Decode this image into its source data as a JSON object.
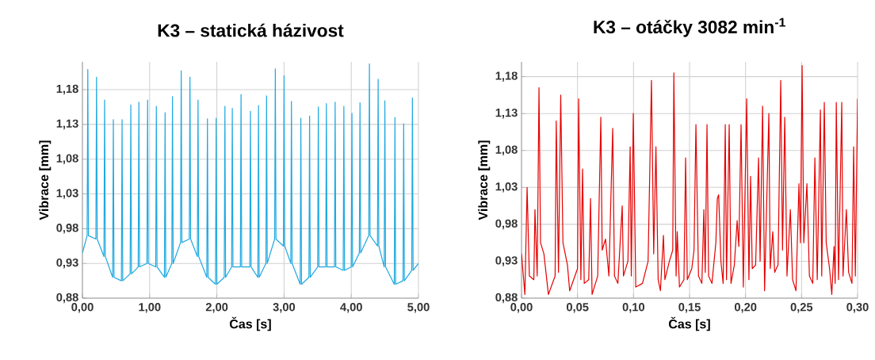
{
  "chart_data": [
    {
      "type": "line",
      "title": "K3 – statická házivost",
      "xlabel": "Čas [s]",
      "ylabel": "Vibrace [mm]",
      "grid": true,
      "xlim": [
        0,
        5
      ],
      "ylim": [
        0.88,
        1.22
      ],
      "xticks": [
        {
          "value": 0,
          "label": "0,00"
        },
        {
          "value": 1,
          "label": "1,00"
        },
        {
          "value": 2,
          "label": "2,00"
        },
        {
          "value": 3,
          "label": "3,00"
        },
        {
          "value": 4,
          "label": "4,00"
        },
        {
          "value": 5,
          "label": "5,00"
        }
      ],
      "yticks": [
        {
          "value": 0.88,
          "label": "0,88"
        },
        {
          "value": 0.93,
          "label": "0,93"
        },
        {
          "value": 0.98,
          "label": "0,98"
        },
        {
          "value": 1.03,
          "label": "1,03"
        },
        {
          "value": 1.08,
          "label": "1,08"
        },
        {
          "value": 1.13,
          "label": "1,13"
        },
        {
          "value": 1.18,
          "label": "1,18"
        }
      ],
      "x": [
        0,
        0.07,
        0.08,
        0.09,
        0.2,
        0.21,
        0.22,
        0.32,
        0.33,
        0.34,
        0.45,
        0.46,
        0.47,
        0.58,
        0.59,
        0.6,
        0.71,
        0.72,
        0.73,
        0.83,
        0.84,
        0.85,
        0.96,
        0.97,
        0.98,
        1.09,
        1.1,
        1.11,
        1.22,
        1.23,
        1.24,
        1.33,
        1.34,
        1.35,
        1.46,
        1.47,
        1.48,
        1.59,
        1.6,
        1.61,
        1.71,
        1.72,
        1.73,
        1.85,
        1.86,
        1.87,
        1.98,
        1.99,
        2.0,
        2.11,
        2.12,
        2.13,
        2.22,
        2.23,
        2.24,
        2.35,
        2.36,
        2.37,
        2.49,
        2.5,
        2.51,
        2.61,
        2.62,
        2.63,
        2.73,
        2.74,
        2.75,
        2.86,
        2.87,
        2.88,
        2.99,
        3.0,
        3.01,
        3.1,
        3.11,
        3.12,
        3.24,
        3.25,
        3.26,
        3.37,
        3.38,
        3.39,
        3.5,
        3.51,
        3.52,
        3.62,
        3.63,
        3.64,
        3.75,
        3.76,
        3.77,
        3.88,
        3.89,
        3.9,
        4.0,
        4.01,
        4.02,
        4.12,
        4.13,
        4.14,
        4.26,
        4.27,
        4.28,
        4.39,
        4.4,
        4.41,
        4.49,
        4.5,
        4.51,
        4.64,
        4.65,
        4.66,
        4.77,
        4.78,
        4.79,
        4.9,
        4.91,
        4.92,
        5
      ],
      "series": [
        {
          "color": "#1ea9e1",
          "values": [
            0.945,
            0.97,
            1.209,
            0.97,
            0.965,
            1.198,
            0.965,
            0.94,
            1.165,
            0.94,
            0.91,
            1.137,
            0.91,
            0.905,
            1.137,
            0.905,
            0.915,
            1.158,
            0.915,
            0.925,
            1.162,
            0.925,
            0.93,
            1.165,
            0.93,
            0.925,
            1.156,
            0.925,
            0.91,
            1.147,
            0.91,
            0.93,
            1.17,
            0.93,
            0.96,
            1.207,
            0.96,
            0.965,
            1.198,
            0.965,
            0.94,
            1.165,
            0.94,
            0.91,
            1.138,
            0.91,
            0.9,
            1.139,
            0.9,
            0.91,
            1.156,
            0.91,
            0.925,
            1.153,
            0.925,
            0.925,
            1.173,
            0.925,
            0.925,
            1.149,
            0.925,
            0.91,
            1.157,
            0.91,
            0.93,
            1.171,
            0.93,
            0.965,
            1.21,
            0.965,
            0.955,
            1.2,
            0.955,
            0.93,
            1.163,
            0.93,
            0.9,
            1.139,
            0.9,
            0.91,
            1.142,
            0.91,
            0.925,
            1.155,
            0.925,
            0.925,
            1.16,
            0.925,
            0.925,
            1.162,
            0.925,
            0.92,
            1.156,
            0.92,
            0.925,
            1.146,
            0.925,
            0.945,
            1.161,
            0.945,
            0.97,
            1.217,
            0.97,
            0.955,
            1.195,
            0.955,
            0.925,
            1.164,
            0.925,
            0.9,
            1.14,
            0.9,
            0.905,
            1.131,
            0.905,
            0.92,
            1.168,
            0.92,
            0.93
          ]
        }
      ]
    },
    {
      "type": "line",
      "title": "K3 – otáčky 3082 min$^{-1}$",
      "xlabel": "Čas [s]",
      "ylabel": "Vibrace [mm]",
      "grid": true,
      "xlim": [
        0,
        0.3
      ],
      "ylim": [
        0.88,
        1.2
      ],
      "xticks": [
        {
          "value": 0,
          "label": "0,00"
        },
        {
          "value": 0.05,
          "label": "0,05"
        },
        {
          "value": 0.1,
          "label": "0,10"
        },
        {
          "value": 0.15,
          "label": "0,15"
        },
        {
          "value": 0.2,
          "label": "0,20"
        },
        {
          "value": 0.25,
          "label": "0,25"
        },
        {
          "value": 0.3,
          "label": "0,30"
        }
      ],
      "yticks": [
        {
          "value": 0.88,
          "label": "0,88"
        },
        {
          "value": 0.93,
          "label": "0,93"
        },
        {
          "value": 0.98,
          "label": "0,98"
        },
        {
          "value": 1.03,
          "label": "1,03"
        },
        {
          "value": 1.08,
          "label": "1,08"
        },
        {
          "value": 1.13,
          "label": "1,13"
        },
        {
          "value": 1.18,
          "label": "1,18"
        }
      ],
      "x": [
        0,
        0.003,
        0.005,
        0.007,
        0.011,
        0.012,
        0.014,
        0.0156,
        0.017,
        0.02,
        0.024,
        0.03,
        0.031,
        0.033,
        0.035,
        0.037,
        0.041,
        0.043,
        0.05,
        0.051,
        0.053,
        0.0545,
        0.056,
        0.06,
        0.0616,
        0.063,
        0.068,
        0.0708,
        0.072,
        0.075,
        0.078,
        0.0814,
        0.083,
        0.086,
        0.0899,
        0.091,
        0.095,
        0.097,
        0.098,
        0.0998,
        0.102,
        0.108,
        0.113,
        0.116,
        0.118,
        0.12,
        0.122,
        0.124,
        0.1267,
        0.128,
        0.132,
        0.135,
        0.136,
        0.138,
        0.139,
        0.141,
        0.145,
        0.1465,
        0.148,
        0.152,
        0.154,
        0.1557,
        0.158,
        0.161,
        0.1628,
        0.164,
        0.1656,
        0.167,
        0.17,
        0.1735,
        0.1748,
        0.176,
        0.178,
        0.18,
        0.1819,
        0.183,
        0.1854,
        0.187,
        0.19,
        0.1925,
        0.194,
        0.196,
        0.198,
        0.201,
        0.203,
        0.2045,
        0.206,
        0.209,
        0.2116,
        0.213,
        0.2152,
        0.217,
        0.2208,
        0.222,
        0.2243,
        0.226,
        0.229,
        0.2314,
        0.233,
        0.235,
        0.237,
        0.24,
        0.242,
        0.245,
        0.2477,
        0.249,
        0.2505,
        0.252,
        0.2548,
        0.257,
        0.26,
        0.2619,
        0.264,
        0.2668,
        0.268,
        0.2703,
        0.272,
        0.275,
        0.277,
        0.279,
        0.28,
        0.281,
        0.283,
        0.2859,
        0.287,
        0.29,
        0.292,
        0.295,
        0.2965,
        0.298,
        0.3
      ],
      "series": [
        {
          "color": "#e60000",
          "values": [
            0.94,
            0.885,
            1.03,
            0.91,
            0.905,
            1.0,
            0.91,
            1.165,
            0.955,
            0.94,
            0.885,
            0.91,
            1.12,
            0.915,
            1.155,
            0.955,
            0.925,
            0.89,
            0.92,
            1.15,
            0.905,
            1.055,
            0.9,
            0.905,
            1.015,
            0.885,
            0.91,
            1.125,
            0.945,
            0.96,
            0.91,
            1.11,
            0.91,
            0.9,
            1.005,
            0.91,
            0.93,
            1.085,
            0.91,
            1.13,
            0.895,
            0.9,
            0.93,
            1.175,
            0.94,
            1.085,
            0.905,
            0.89,
            0.965,
            0.905,
            0.93,
            0.945,
            1.185,
            0.91,
            0.97,
            0.895,
            0.905,
            1.07,
            0.905,
            0.92,
            0.945,
            1.115,
            0.91,
            0.9,
            1.0,
            0.915,
            1.115,
            0.91,
            0.9,
            0.955,
            1.015,
            1.02,
            0.93,
            0.9,
            1.115,
            0.905,
            1.115,
            0.9,
            0.925,
            0.985,
            0.95,
            1.115,
            0.895,
            1.15,
            0.905,
            1.045,
            0.92,
            0.925,
            1.07,
            0.93,
            1.14,
            0.89,
            1.13,
            0.92,
            0.97,
            0.915,
            0.925,
            1.175,
            0.945,
            1.125,
            0.91,
            1.0,
            0.905,
            0.89,
            1.035,
            0.955,
            1.195,
            0.955,
            1.035,
            0.91,
            0.9,
            1.07,
            0.905,
            1.135,
            0.91,
            1.145,
            0.955,
            0.92,
            0.885,
            0.95,
            0.9,
            1.145,
            0.905,
            1.145,
            0.91,
            1.0,
            0.915,
            0.9,
            1.085,
            0.91,
            1.15
          ]
        }
      ]
    }
  ]
}
